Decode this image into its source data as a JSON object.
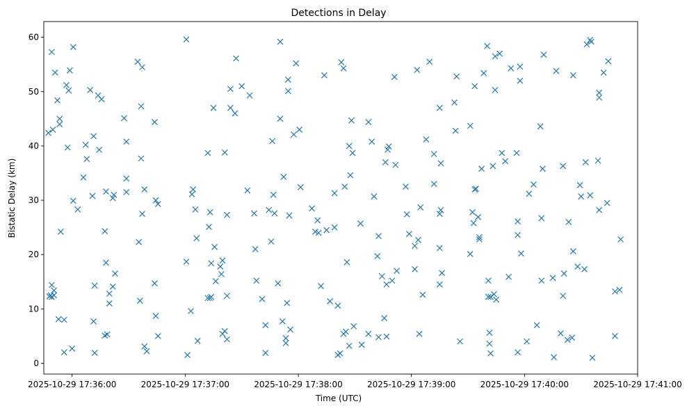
{
  "chart_data": {
    "type": "scatter",
    "title": "Detections in Delay",
    "xlabel": "Time (UTC)",
    "ylabel": "Bistatic Delay (km)",
    "marker": "x",
    "color": "#1f77b4",
    "grid": false,
    "legend": "none",
    "x_unit": "minutes after 2025-10-29 17:35:00 UTC",
    "xlim": [
      0.75,
      6.0
    ],
    "ylim": [
      -2,
      62.9
    ],
    "x_ticks": [
      {
        "value": 1,
        "label": "2025-10-29 17:36:00"
      },
      {
        "value": 2,
        "label": "2025-10-29 17:37:00"
      },
      {
        "value": 3,
        "label": "2025-10-29 17:38:00"
      },
      {
        "value": 4,
        "label": "2025-10-29 17:39:00"
      },
      {
        "value": 5,
        "label": "2025-10-29 17:40:00"
      },
      {
        "value": 6,
        "label": "2025-10-29 17:41:00"
      }
    ],
    "y_ticks": [
      {
        "value": 0,
        "label": "0"
      },
      {
        "value": 10,
        "label": "10"
      },
      {
        "value": 20,
        "label": "20"
      },
      {
        "value": 30,
        "label": "30"
      },
      {
        "value": 40,
        "label": "40"
      },
      {
        "value": 50,
        "label": "50"
      },
      {
        "value": 60,
        "label": "60"
      }
    ],
    "points": [
      [
        0.79,
        42.4
      ],
      [
        0.8,
        12.3
      ],
      [
        0.81,
        12.5
      ],
      [
        0.82,
        57.3
      ],
      [
        0.82,
        14.4
      ],
      [
        0.82,
        12.2
      ],
      [
        0.83,
        43.0
      ],
      [
        0.84,
        12.5
      ],
      [
        0.84,
        13.4
      ],
      [
        0.85,
        53.5
      ],
      [
        0.87,
        48.4
      ],
      [
        0.88,
        8.1
      ],
      [
        0.89,
        45.0
      ],
      [
        0.89,
        44.0
      ],
      [
        0.9,
        24.2
      ],
      [
        0.93,
        2.0
      ],
      [
        0.93,
        8.0
      ],
      [
        0.95,
        51.2
      ],
      [
        0.96,
        39.7
      ],
      [
        0.97,
        50.2
      ],
      [
        0.98,
        53.9
      ],
      [
        1.0,
        2.7
      ],
      [
        1.01,
        29.9
      ],
      [
        1.01,
        58.2
      ],
      [
        1.05,
        28.3
      ],
      [
        1.1,
        34.2
      ],
      [
        1.12,
        40.2
      ],
      [
        1.13,
        37.6
      ],
      [
        1.16,
        50.3
      ],
      [
        1.18,
        30.8
      ],
      [
        1.19,
        41.8
      ],
      [
        1.19,
        7.7
      ],
      [
        1.2,
        14.3
      ],
      [
        1.2,
        1.9
      ],
      [
        1.23,
        49.3
      ],
      [
        1.24,
        39.3
      ],
      [
        1.26,
        48.6
      ],
      [
        1.29,
        24.3
      ],
      [
        1.29,
        5.1
      ],
      [
        1.3,
        31.6
      ],
      [
        1.3,
        18.5
      ],
      [
        1.31,
        5.3
      ],
      [
        1.33,
        12.8
      ],
      [
        1.33,
        11.0
      ],
      [
        1.36,
        14.1
      ],
      [
        1.36,
        30.4
      ],
      [
        1.37,
        31.0
      ],
      [
        1.38,
        16.5
      ],
      [
        1.46,
        45.1
      ],
      [
        1.48,
        40.8
      ],
      [
        1.48,
        34.0
      ],
      [
        1.48,
        31.5
      ],
      [
        1.58,
        55.5
      ],
      [
        1.59,
        22.3
      ],
      [
        1.6,
        11.5
      ],
      [
        1.61,
        47.3
      ],
      [
        1.61,
        37.7
      ],
      [
        1.62,
        54.5
      ],
      [
        1.62,
        27.5
      ],
      [
        1.64,
        32.0
      ],
      [
        1.64,
        3.1
      ],
      [
        1.66,
        2.2
      ],
      [
        1.73,
        44.4
      ],
      [
        1.73,
        14.7
      ],
      [
        1.74,
        8.7
      ],
      [
        1.74,
        30.0
      ],
      [
        1.76,
        5.0
      ],
      [
        1.76,
        29.3
      ],
      [
        2.01,
        59.6
      ],
      [
        2.01,
        18.7
      ],
      [
        2.02,
        1.5
      ],
      [
        2.05,
        9.6
      ],
      [
        2.06,
        31.1
      ],
      [
        2.07,
        32.0
      ],
      [
        2.09,
        28.3
      ],
      [
        2.1,
        23.0
      ],
      [
        2.11,
        4.1
      ],
      [
        2.2,
        38.7
      ],
      [
        2.2,
        12.0
      ],
      [
        2.21,
        25.1
      ],
      [
        2.22,
        12.0
      ],
      [
        2.22,
        27.8
      ],
      [
        2.23,
        18.4
      ],
      [
        2.23,
        12.2
      ],
      [
        2.25,
        47.0
      ],
      [
        2.26,
        21.4
      ],
      [
        2.27,
        15.1
      ],
      [
        2.31,
        17.8
      ],
      [
        2.32,
        16.4
      ],
      [
        2.33,
        18.9
      ],
      [
        2.33,
        5.4
      ],
      [
        2.35,
        38.8
      ],
      [
        2.35,
        5.9
      ],
      [
        2.37,
        27.3
      ],
      [
        2.37,
        12.4
      ],
      [
        2.37,
        4.4
      ],
      [
        2.4,
        50.5
      ],
      [
        2.4,
        47.0
      ],
      [
        2.44,
        46.0
      ],
      [
        2.45,
        56.1
      ],
      [
        2.5,
        51.0
      ],
      [
        2.55,
        31.8
      ],
      [
        2.57,
        49.3
      ],
      [
        2.61,
        27.6
      ],
      [
        2.62,
        21.0
      ],
      [
        2.63,
        15.2
      ],
      [
        2.68,
        11.8
      ],
      [
        2.71,
        1.9
      ],
      [
        2.71,
        7.0
      ],
      [
        2.74,
        28.2
      ],
      [
        2.76,
        22.4
      ],
      [
        2.77,
        40.9
      ],
      [
        2.78,
        31.0
      ],
      [
        2.79,
        27.6
      ],
      [
        2.82,
        14.7
      ],
      [
        2.84,
        59.2
      ],
      [
        2.84,
        45.0
      ],
      [
        2.86,
        7.7
      ],
      [
        2.87,
        34.3
      ],
      [
        2.89,
        4.6
      ],
      [
        2.89,
        3.7
      ],
      [
        2.9,
        11.1
      ],
      [
        2.91,
        52.2
      ],
      [
        2.91,
        50.1
      ],
      [
        2.92,
        27.2
      ],
      [
        2.93,
        6.2
      ],
      [
        2.96,
        42.1
      ],
      [
        2.98,
        55.2
      ],
      [
        3.01,
        43.0
      ],
      [
        3.02,
        32.4
      ],
      [
        3.12,
        28.5
      ],
      [
        3.15,
        24.2
      ],
      [
        3.17,
        26.3
      ],
      [
        3.18,
        24.0
      ],
      [
        3.2,
        14.2
      ],
      [
        3.23,
        53.0
      ],
      [
        3.25,
        24.5
      ],
      [
        3.28,
        11.4
      ],
      [
        3.32,
        31.3
      ],
      [
        3.32,
        25.0
      ],
      [
        3.35,
        10.6
      ],
      [
        3.35,
        1.5
      ],
      [
        3.37,
        1.8
      ],
      [
        3.38,
        55.4
      ],
      [
        3.4,
        54.3
      ],
      [
        3.4,
        5.4
      ],
      [
        3.41,
        32.5
      ],
      [
        3.42,
        5.8
      ],
      [
        3.43,
        18.6
      ],
      [
        3.45,
        40.0
      ],
      [
        3.45,
        3.2
      ],
      [
        3.46,
        34.6
      ],
      [
        3.47,
        44.7
      ],
      [
        3.48,
        38.7
      ],
      [
        3.49,
        6.8
      ],
      [
        3.55,
        25.7
      ],
      [
        3.56,
        3.4
      ],
      [
        3.62,
        44.4
      ],
      [
        3.62,
        5.4
      ],
      [
        3.65,
        40.8
      ],
      [
        3.67,
        30.7
      ],
      [
        3.7,
        19.7
      ],
      [
        3.71,
        23.4
      ],
      [
        3.71,
        4.8
      ],
      [
        3.74,
        16.0
      ],
      [
        3.76,
        8.3
      ],
      [
        3.77,
        37.0
      ],
      [
        3.78,
        14.5
      ],
      [
        3.78,
        4.9
      ],
      [
        3.79,
        39.3
      ],
      [
        3.8,
        39.9
      ],
      [
        3.83,
        15.2
      ],
      [
        3.85,
        52.7
      ],
      [
        3.86,
        36.5
      ],
      [
        3.87,
        17.0
      ],
      [
        3.95,
        32.5
      ],
      [
        3.96,
        27.4
      ],
      [
        3.98,
        23.8
      ],
      [
        4.03,
        17.3
      ],
      [
        4.03,
        21.6
      ],
      [
        4.05,
        54.0
      ],
      [
        4.06,
        22.7
      ],
      [
        4.07,
        5.4
      ],
      [
        4.08,
        28.7
      ],
      [
        4.1,
        12.6
      ],
      [
        4.13,
        41.2
      ],
      [
        4.16,
        55.5
      ],
      [
        4.2,
        38.5
      ],
      [
        4.2,
        33.0
      ],
      [
        4.25,
        47.0
      ],
      [
        4.25,
        27.5
      ],
      [
        4.25,
        21.2
      ],
      [
        4.25,
        14.5
      ],
      [
        4.26,
        36.8
      ],
      [
        4.26,
        28.2
      ],
      [
        4.27,
        16.6
      ],
      [
        4.38,
        48.0
      ],
      [
        4.39,
        42.8
      ],
      [
        4.4,
        52.8
      ],
      [
        4.43,
        4.0
      ],
      [
        4.52,
        43.7
      ],
      [
        4.52,
        20.1
      ],
      [
        4.54,
        27.8
      ],
      [
        4.55,
        25.8
      ],
      [
        4.56,
        32.0
      ],
      [
        4.56,
        51.0
      ],
      [
        4.57,
        32.1
      ],
      [
        4.59,
        26.9
      ],
      [
        4.6,
        23.2
      ],
      [
        4.6,
        22.8
      ],
      [
        4.62,
        35.8
      ],
      [
        4.64,
        53.4
      ],
      [
        4.67,
        58.4
      ],
      [
        4.68,
        15.2
      ],
      [
        4.68,
        12.2
      ],
      [
        4.69,
        5.6
      ],
      [
        4.69,
        3.6
      ],
      [
        4.7,
        12.2
      ],
      [
        4.7,
        1.8
      ],
      [
        4.72,
        36.3
      ],
      [
        4.73,
        12.7
      ],
      [
        4.74,
        56.5
      ],
      [
        4.74,
        50.3
      ],
      [
        4.75,
        11.7
      ],
      [
        4.78,
        57.0
      ],
      [
        4.8,
        38.7
      ],
      [
        4.83,
        37.2
      ],
      [
        4.86,
        15.9
      ],
      [
        4.88,
        54.3
      ],
      [
        4.93,
        38.7
      ],
      [
        4.94,
        26.1
      ],
      [
        4.94,
        23.6
      ],
      [
        4.94,
        2.0
      ],
      [
        4.96,
        54.6
      ],
      [
        4.96,
        52.0
      ],
      [
        4.97,
        20.2
      ],
      [
        5.02,
        4.0
      ],
      [
        5.04,
        31.2
      ],
      [
        5.08,
        32.9
      ],
      [
        5.11,
        7.0
      ],
      [
        5.14,
        43.6
      ],
      [
        5.15,
        15.2
      ],
      [
        5.15,
        26.7
      ],
      [
        5.16,
        35.8
      ],
      [
        5.17,
        56.8
      ],
      [
        5.25,
        15.7
      ],
      [
        5.26,
        1.1
      ],
      [
        5.28,
        53.8
      ],
      [
        5.32,
        5.5
      ],
      [
        5.34,
        36.3
      ],
      [
        5.34,
        12.4
      ],
      [
        5.35,
        16.5
      ],
      [
        5.38,
        4.3
      ],
      [
        5.39,
        26.0
      ],
      [
        5.42,
        4.7
      ],
      [
        5.43,
        20.6
      ],
      [
        5.43,
        53.0
      ],
      [
        5.47,
        17.8
      ],
      [
        5.49,
        32.8
      ],
      [
        5.5,
        30.7
      ],
      [
        5.53,
        17.3
      ],
      [
        5.54,
        37.0
      ],
      [
        5.55,
        58.7
      ],
      [
        5.58,
        59.5
      ],
      [
        5.58,
        30.9
      ],
      [
        5.59,
        59.2
      ],
      [
        5.6,
        1.0
      ],
      [
        5.65,
        37.3
      ],
      [
        5.66,
        49.8
      ],
      [
        5.66,
        48.9
      ],
      [
        5.66,
        28.2
      ],
      [
        5.7,
        53.5
      ],
      [
        5.73,
        29.5
      ],
      [
        5.74,
        55.6
      ],
      [
        5.8,
        13.2
      ],
      [
        5.8,
        5.0
      ],
      [
        5.84,
        13.5
      ],
      [
        5.85,
        22.8
      ]
    ]
  }
}
